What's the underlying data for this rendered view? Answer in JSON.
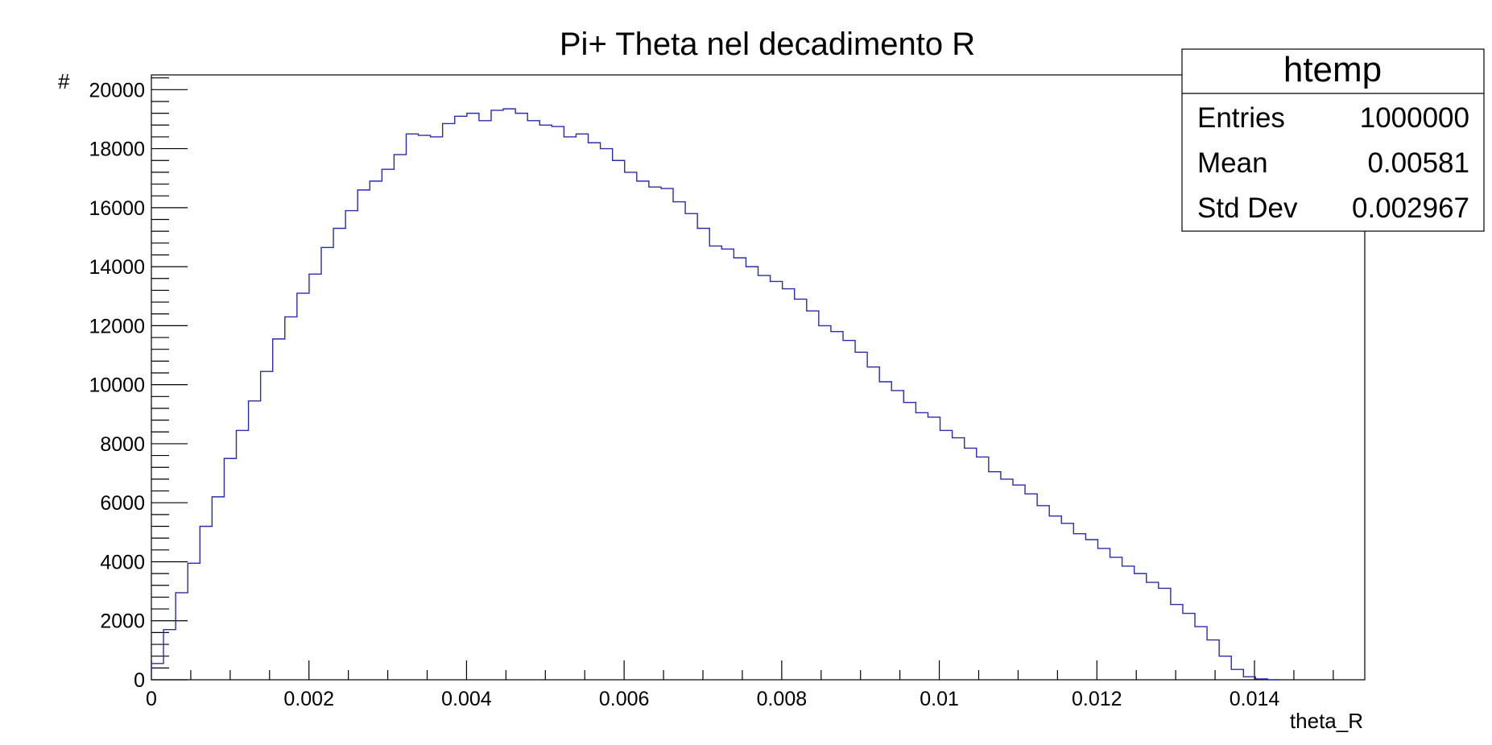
{
  "chart_data": {
    "type": "histogram",
    "title": "Pi+ Theta nel decadimento R",
    "xlabel": "theta_R",
    "ylabel": "#",
    "xlim": [
      0,
      0.0154
    ],
    "ylim": [
      0,
      20500
    ],
    "x_ticks": [
      0,
      0.002,
      0.004,
      0.006,
      0.008,
      0.01,
      0.012,
      0.014
    ],
    "x_tick_labels": [
      "0",
      "0.002",
      "0.004",
      "0.006",
      "0.008",
      "0.01",
      "0.012",
      "0.014"
    ],
    "y_ticks": [
      0,
      2000,
      4000,
      6000,
      8000,
      10000,
      12000,
      14000,
      16000,
      18000,
      20000
    ],
    "y_tick_labels": [
      "0",
      "2000",
      "4000",
      "6000",
      "8000",
      "10000",
      "12000",
      "14000",
      "16000",
      "18000",
      "20000"
    ],
    "line_color": "#2b2bb0",
    "bin_width": 0.000154,
    "bins_start": 0,
    "values": [
      550,
      1700,
      2950,
      3950,
      5200,
      6200,
      7500,
      8450,
      9450,
      10450,
      11550,
      12300,
      13100,
      13750,
      14650,
      15300,
      15900,
      16600,
      16900,
      17300,
      17800,
      18500,
      18450,
      18400,
      18850,
      19100,
      19200,
      18950,
      19300,
      19350,
      19200,
      18950,
      18800,
      18750,
      18400,
      18500,
      18200,
      18000,
      17600,
      17200,
      16900,
      16700,
      16650,
      16200,
      15800,
      15300,
      14700,
      14600,
      14300,
      14000,
      13700,
      13500,
      13250,
      12900,
      12500,
      12000,
      11800,
      11500,
      11100,
      10600,
      10100,
      9800,
      9400,
      9050,
      8900,
      8450,
      8200,
      7850,
      7550,
      7050,
      6800,
      6600,
      6300,
      5900,
      5550,
      5300,
      4950,
      4750,
      4450,
      4150,
      3850,
      3600,
      3300,
      3100,
      2550,
      2250,
      1800,
      1350,
      800,
      350,
      100,
      30,
      0
    ]
  },
  "stats_box": {
    "title": "htemp",
    "rows": [
      {
        "label": "Entries",
        "value": "1000000"
      },
      {
        "label": "Mean",
        "value": "0.00581"
      },
      {
        "label": "Std Dev",
        "value": "0.002967"
      }
    ]
  }
}
